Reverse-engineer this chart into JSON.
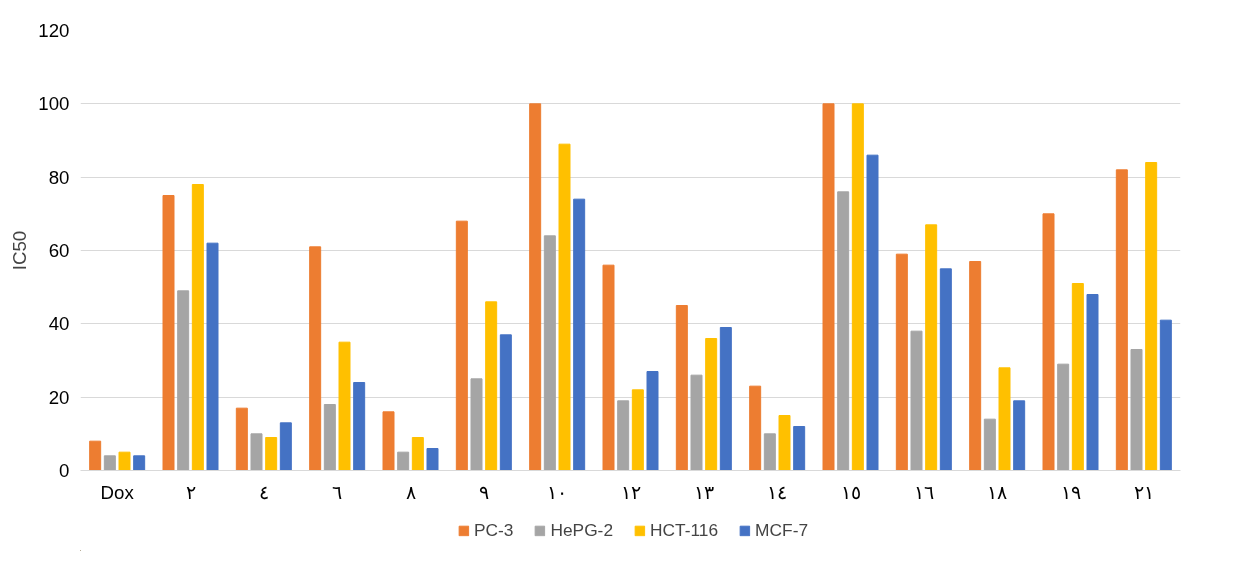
{
  "chart_data": {
    "type": "bar",
    "ylabel": "IC50",
    "categories": [
      "Dox",
      "٢",
      "٤",
      "٦",
      "٨",
      "٩",
      "١٠",
      "١٢",
      "١٣",
      "١٤",
      "١٥",
      "١٦",
      "١٨",
      "١٩",
      "٢١"
    ],
    "series": [
      {
        "name": "PC-3",
        "color": "#ed7d31",
        "values": [
          8,
          75,
          17,
          61,
          16,
          68,
          100,
          56,
          45,
          23,
          100,
          59,
          57,
          70,
          82
        ]
      },
      {
        "name": "HePG-2",
        "color": "#a5a5a5",
        "values": [
          4,
          49,
          10,
          18,
          5,
          25,
          64,
          19,
          26,
          10,
          76,
          38,
          14,
          29,
          33
        ]
      },
      {
        "name": "HCT-116",
        "color": "#ffc000",
        "values": [
          5,
          78,
          9,
          35,
          9,
          46,
          89,
          22,
          36,
          15,
          100,
          67,
          28,
          51,
          84
        ]
      },
      {
        "name": "MCF-7",
        "color": "#4472c4",
        "values": [
          4,
          62,
          13,
          24,
          6,
          37,
          74,
          27,
          39,
          12,
          86,
          55,
          19,
          48,
          41
        ]
      }
    ],
    "ylim": [
      0,
      120
    ],
    "yticks": [
      0,
      20,
      40,
      60,
      80,
      100,
      120
    ],
    "grid": "y",
    "legend": "bottom"
  }
}
